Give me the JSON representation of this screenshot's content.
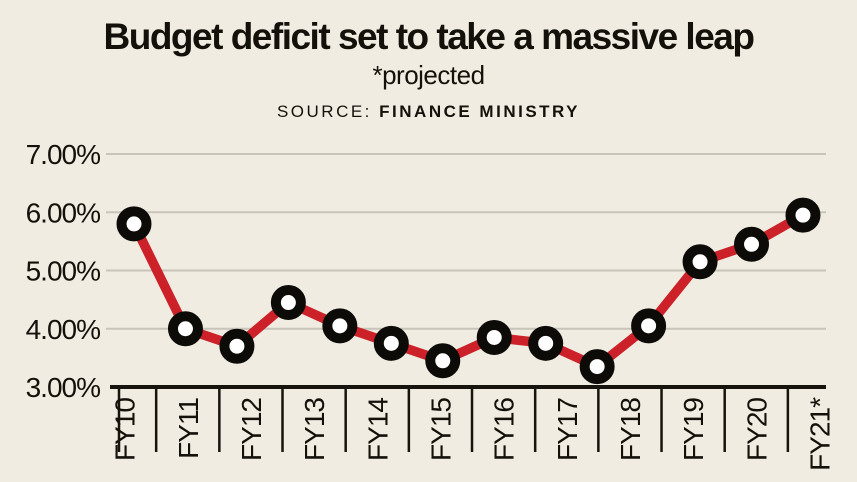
{
  "page": {
    "background": "#f1ece1"
  },
  "header": {
    "title": "Budget deficit set to take a massive leap",
    "subtitle": "*projected",
    "source_label": "SOURCE:",
    "source_value": "FINANCE MINISTRY"
  },
  "chart_data": {
    "type": "line",
    "title": "Budget deficit set to take a massive leap",
    "subtitle": "*projected",
    "source": "SOURCE: FINANCE MINISTRY",
    "categories": [
      "FY10",
      "FY11",
      "FY12",
      "FY13",
      "FY14",
      "FY15",
      "FY16",
      "FY17",
      "FY18",
      "FY19",
      "FY20",
      "FY21*"
    ],
    "values": [
      5.8,
      4.0,
      3.7,
      4.45,
      4.05,
      3.75,
      3.45,
      3.85,
      3.75,
      3.35,
      4.05,
      5.15,
      5.45,
      5.95
    ],
    "values_note": "chart draws 14 markers while the axis shows only 12 fiscal-year labels; FY21* value is projected (~6.00%)",
    "xlabel": "",
    "ylabel": "",
    "ylim": [
      3,
      7
    ],
    "ytick_labels": [
      "3.00%",
      "4.00%",
      "5.00%",
      "6.00%",
      "7.00%"
    ],
    "grid": "horizontal",
    "legend": "none",
    "marker": "black-ring-white-center circle",
    "colors": {
      "line": "#cc2128",
      "marker_ring": "#0d0b08",
      "marker_fill": "#ffffff",
      "grid": "#c8c4b9",
      "axis": "#17140e",
      "text": "#14110b",
      "background": "#f1ece1"
    }
  }
}
